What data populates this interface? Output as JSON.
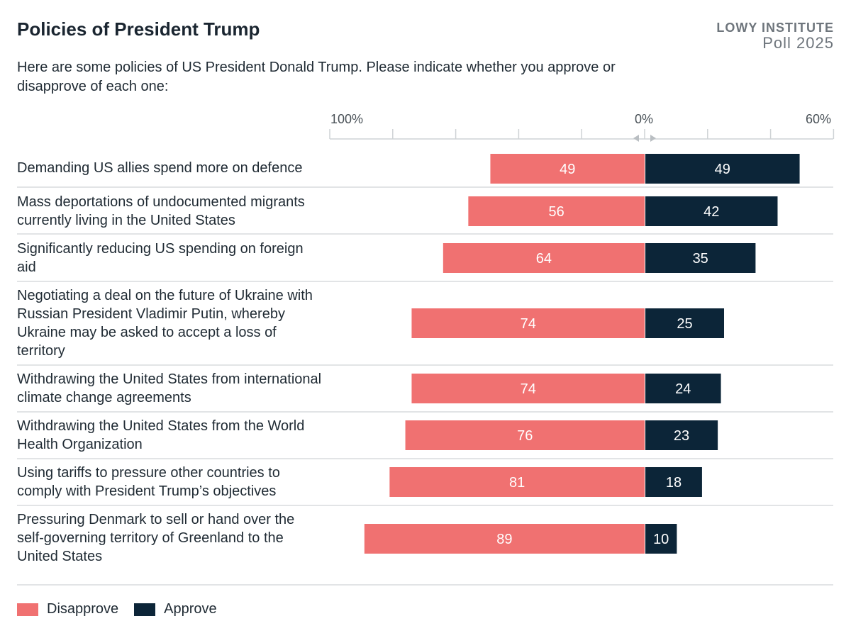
{
  "header": {
    "title": "Policies of President Trump",
    "brand_name": "LOWY INSTITUTE",
    "brand_sub": "Poll 2025",
    "subtitle": "Here are some policies of US President Donald Trump. Please indicate whether you approve or disapprove of each one:"
  },
  "axis": {
    "left_label": "100%",
    "center_label": "0%",
    "right_label": "60%"
  },
  "legend": {
    "disapprove": "Disapprove",
    "approve": "Approve"
  },
  "colors": {
    "disapprove": "#f07171",
    "approve": "#0c2538",
    "gridline": "#cfd3d6",
    "label_text": "#ffffff"
  },
  "chart_data": {
    "type": "bar",
    "orientation": "horizontal-diverging",
    "categories": [
      "Demanding US allies spend more on defence",
      "Mass deportations of undocumented migrants currently living in the United States",
      "Significantly reducing US spending on foreign aid",
      "Negotiating a deal on the future of Ukraine with Russian President Vladimir Putin, whereby Ukraine may be asked to accept a loss of territory",
      "Withdrawing the United States from international climate change agreements",
      "Withdrawing the United States from the World Health Organization",
      "Using tariffs to pressure other countries to comply with President Trump’s objectives",
      "Pressuring Denmark to sell or hand over the self-governing territory of Greenland to the United States"
    ],
    "series": [
      {
        "name": "Disapprove",
        "values": [
          49,
          56,
          64,
          74,
          74,
          76,
          81,
          89
        ]
      },
      {
        "name": "Approve",
        "values": [
          49,
          42,
          35,
          25,
          24,
          23,
          18,
          10
        ]
      }
    ],
    "xlim_left": [
      0,
      100
    ],
    "xlim_right": [
      0,
      60
    ],
    "legend_position": "bottom-left",
    "grid": false
  }
}
